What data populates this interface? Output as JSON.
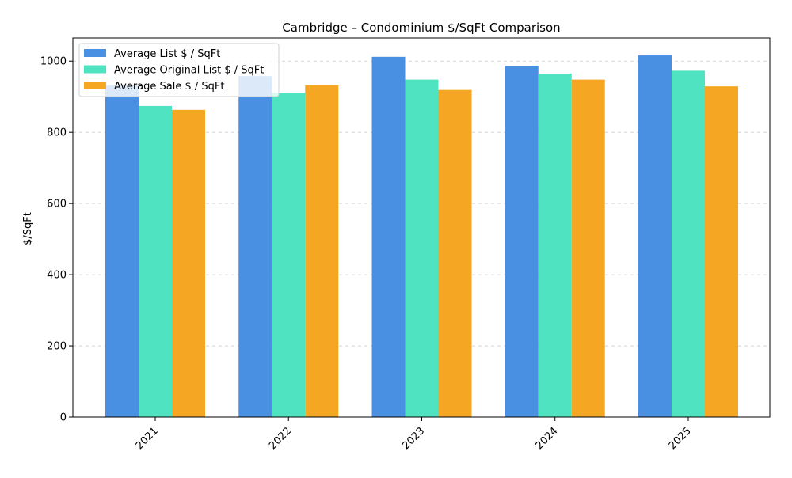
{
  "chart_data": {
    "type": "bar",
    "title": "Cambridge – Condominium $/SqFt Comparison",
    "xlabel": "",
    "ylabel": "$/SqFt",
    "categories": [
      "2021",
      "2022",
      "2023",
      "2024",
      "2025"
    ],
    "ylim": [
      0,
      1065
    ],
    "yticks": [
      0,
      200,
      400,
      600,
      800,
      1000
    ],
    "grid": "y-dashed",
    "legend_position": "top-left",
    "series": [
      {
        "name": "Average List $ / SqFt",
        "color": "#4A90E2",
        "values": [
          932,
          958,
          1012,
          987,
          1016
        ]
      },
      {
        "name": "Average Original List $ / SqFt",
        "color": "#50E3C2",
        "values": [
          874,
          911,
          948,
          965,
          973
        ]
      },
      {
        "name": "Average Sale $ / SqFt",
        "color": "#F5A623",
        "values": [
          863,
          932,
          919,
          948,
          929
        ]
      }
    ]
  }
}
